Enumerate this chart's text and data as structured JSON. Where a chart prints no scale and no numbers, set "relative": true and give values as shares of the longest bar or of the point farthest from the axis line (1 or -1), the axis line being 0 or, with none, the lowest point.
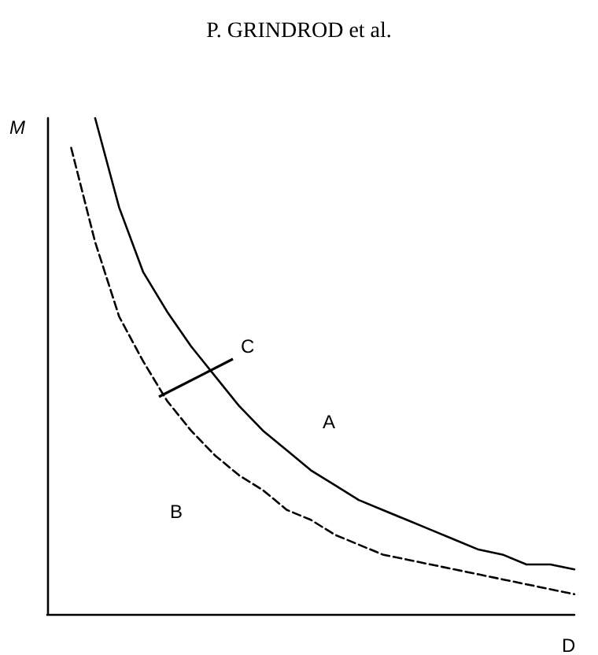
{
  "chart_data": {
    "type": "line",
    "title": "P. GRINDROD et al.",
    "xlabel": "D",
    "ylabel": "M",
    "relative": true,
    "grid": false,
    "marker": "none",
    "categories": [
      null,
      null,
      null,
      null,
      null,
      null,
      null,
      null,
      null,
      null,
      null,
      null,
      null,
      null,
      null,
      null,
      null,
      null,
      null,
      null,
      null,
      null,
      null
    ],
    "series": [
      {
        "color": "#000000",
        "line_style": "solid",
        "values": [
          null,
          null,
          1,
          0.82,
          0.69,
          0.61,
          0.54,
          0.48,
          0.42,
          0.37,
          0.33,
          0.29,
          0.26,
          0.23,
          0.21,
          0.19,
          0.17,
          0.15,
          0.13,
          0.12,
          0.1,
          0.1,
          0.09
        ]
      },
      {
        "color": "#000000",
        "line_style": "dashed",
        "values": [
          null,
          0.94,
          0.75,
          0.6,
          0.51,
          0.43,
          0.37,
          0.32,
          0.28,
          0.25,
          0.21,
          0.19,
          0.16,
          0.14,
          0.12,
          0.11,
          0.1,
          0.09,
          0.08,
          0.07,
          0.06,
          0.05,
          0.04
        ]
      }
    ],
    "annotations": [
      "C",
      "A",
      "B"
    ]
  }
}
